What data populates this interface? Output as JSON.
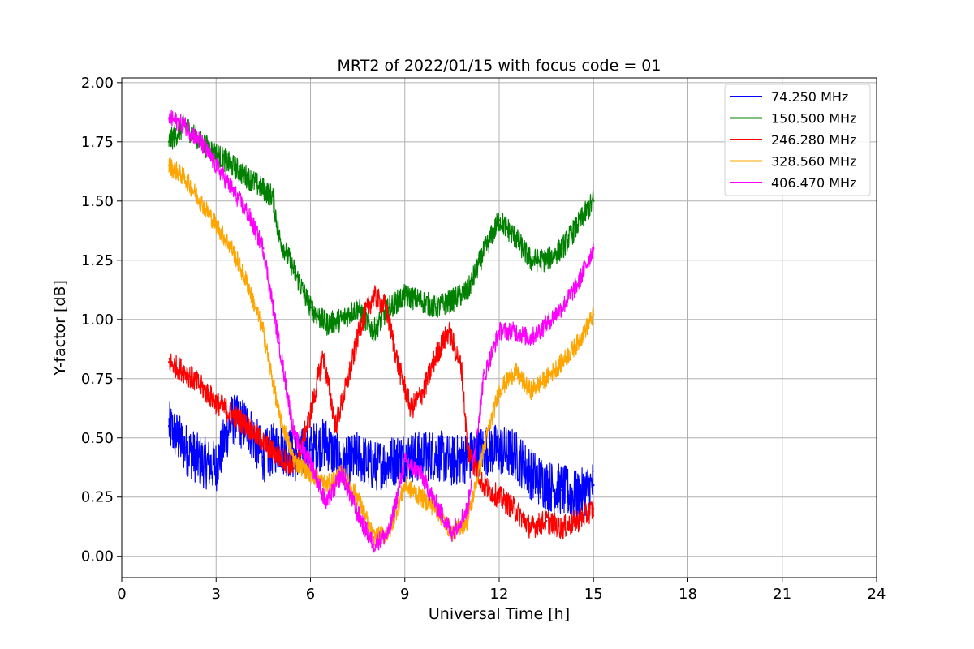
{
  "chart_data": {
    "type": "line",
    "title": "MRT2 of 2022/01/15 with focus code = 01",
    "xlabel": "Universal Time [h]",
    "ylabel": "Y-factor [dB]",
    "xlim": [
      0,
      24
    ],
    "ylim": [
      -0.09,
      2.02
    ],
    "xticks": [
      0,
      3,
      6,
      9,
      12,
      15,
      18,
      21,
      24
    ],
    "xtick_labels": [
      "0",
      "3",
      "6",
      "9",
      "12",
      "15",
      "18",
      "21",
      "24"
    ],
    "yticks": [
      0,
      0.25,
      0.5,
      0.75,
      1.0,
      1.25,
      1.5,
      1.75,
      2.0
    ],
    "ytick_labels": [
      "0.00",
      "0.25",
      "0.50",
      "0.75",
      "1.00",
      "1.25",
      "1.50",
      "1.75",
      "2.00"
    ],
    "grid": true,
    "legend_position": "top-right",
    "series": [
      {
        "name": " 74.250 MHz",
        "color": "#0000ff",
        "x": [
          1.5,
          2.0,
          2.5,
          3.0,
          3.5,
          4.0,
          4.5,
          5.0,
          5.5,
          6.0,
          6.5,
          7.0,
          7.5,
          8.0,
          8.5,
          9.0,
          9.5,
          10.0,
          10.5,
          11.0,
          11.5,
          12.0,
          12.5,
          13.0,
          13.5,
          14.0,
          14.5,
          15.0
        ],
        "values": [
          0.55,
          0.46,
          0.4,
          0.38,
          0.58,
          0.55,
          0.42,
          0.47,
          0.42,
          0.45,
          0.48,
          0.38,
          0.42,
          0.38,
          0.4,
          0.42,
          0.42,
          0.43,
          0.4,
          0.42,
          0.45,
          0.45,
          0.43,
          0.35,
          0.3,
          0.28,
          0.25,
          0.3
        ],
        "spread": 0.11
      },
      {
        "name": "150.500 MHz",
        "color": "#008000",
        "x": [
          1.5,
          2.0,
          2.5,
          3.0,
          3.5,
          4.0,
          4.5,
          4.8,
          5.0,
          5.5,
          6.0,
          6.5,
          7.0,
          7.5,
          8.0,
          8.5,
          9.0,
          9.5,
          10.0,
          10.5,
          11.0,
          11.5,
          12.0,
          12.5,
          13.0,
          13.5,
          14.0,
          14.5,
          15.0
        ],
        "values": [
          1.75,
          1.82,
          1.75,
          1.7,
          1.65,
          1.6,
          1.55,
          1.52,
          1.35,
          1.2,
          1.05,
          0.98,
          1.0,
          1.05,
          0.95,
          1.05,
          1.1,
          1.08,
          1.05,
          1.08,
          1.12,
          1.28,
          1.42,
          1.35,
          1.25,
          1.25,
          1.3,
          1.4,
          1.5
        ],
        "spread": 0.05
      },
      {
        "name": "246.280 MHz",
        "color": "#ff0000",
        "x": [
          1.5,
          2.0,
          2.5,
          3.0,
          3.5,
          4.0,
          4.5,
          5.0,
          5.5,
          6.0,
          6.4,
          6.8,
          7.2,
          7.6,
          8.0,
          8.4,
          8.8,
          9.2,
          9.6,
          10.0,
          10.4,
          10.8,
          11.0,
          11.5,
          12.0,
          12.5,
          13.0,
          13.5,
          14.0,
          14.5,
          15.0
        ],
        "values": [
          0.82,
          0.78,
          0.72,
          0.65,
          0.6,
          0.55,
          0.48,
          0.42,
          0.38,
          0.6,
          0.85,
          0.55,
          0.75,
          0.98,
          1.1,
          1.05,
          0.8,
          0.62,
          0.7,
          0.85,
          0.95,
          0.8,
          0.45,
          0.3,
          0.25,
          0.2,
          0.12,
          0.15,
          0.12,
          0.15,
          0.2
        ],
        "spread": 0.05
      },
      {
        "name": "328.560 MHz",
        "color": "#ffa500",
        "x": [
          1.5,
          2.0,
          2.5,
          3.0,
          3.5,
          4.0,
          4.5,
          5.0,
          5.5,
          6.0,
          6.5,
          7.0,
          7.5,
          8.0,
          8.5,
          9.0,
          9.5,
          10.0,
          10.5,
          11.0,
          11.5,
          12.0,
          12.5,
          13.0,
          13.5,
          14.0,
          14.5,
          15.0
        ],
        "values": [
          1.65,
          1.6,
          1.5,
          1.4,
          1.3,
          1.15,
          0.95,
          0.6,
          0.4,
          0.35,
          0.3,
          0.35,
          0.25,
          0.08,
          0.1,
          0.3,
          0.25,
          0.2,
          0.1,
          0.15,
          0.45,
          0.7,
          0.78,
          0.7,
          0.75,
          0.82,
          0.9,
          1.02
        ],
        "spread": 0.04
      },
      {
        "name": "406.470 MHz",
        "color": "#ff00ff",
        "x": [
          1.5,
          2.0,
          2.5,
          3.0,
          3.5,
          4.0,
          4.5,
          5.0,
          5.5,
          6.0,
          6.5,
          7.0,
          7.5,
          8.0,
          8.5,
          9.0,
          9.5,
          10.0,
          10.5,
          11.0,
          11.5,
          12.0,
          12.5,
          13.0,
          13.5,
          14.0,
          14.5,
          15.0
        ],
        "values": [
          1.85,
          1.82,
          1.75,
          1.65,
          1.55,
          1.45,
          1.3,
          0.9,
          0.5,
          0.4,
          0.22,
          0.35,
          0.18,
          0.05,
          0.1,
          0.4,
          0.35,
          0.22,
          0.1,
          0.2,
          0.75,
          0.95,
          0.95,
          0.92,
          0.98,
          1.05,
          1.15,
          1.3
        ],
        "spread": 0.04
      }
    ]
  }
}
